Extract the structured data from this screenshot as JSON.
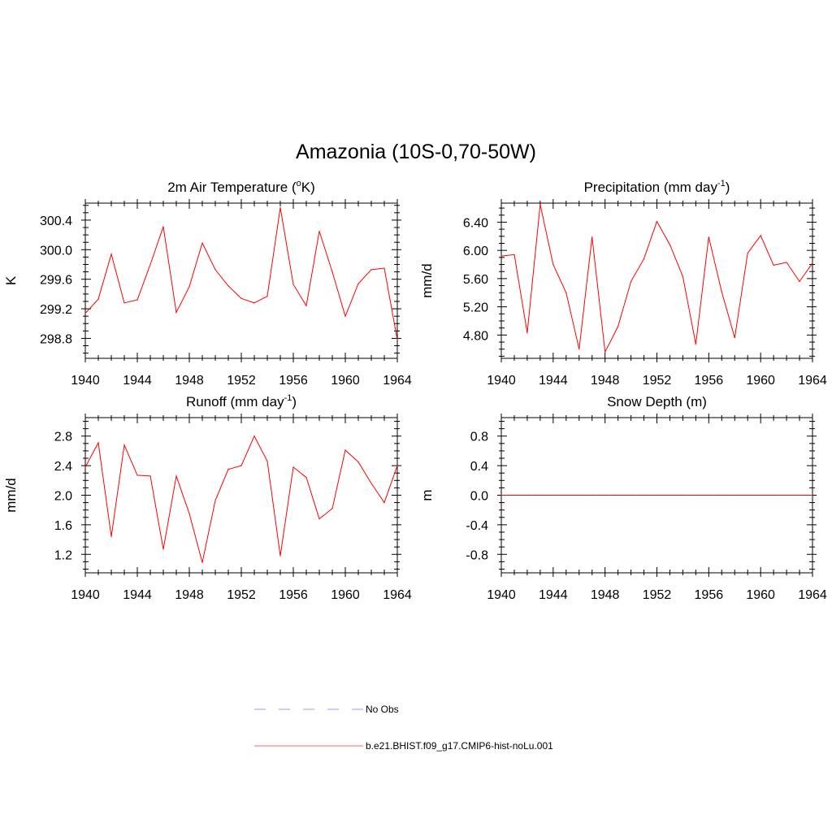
{
  "figure": {
    "title": "Amazonia (10S-0,70-50W)"
  },
  "legend": [
    {
      "label": "No Obs",
      "color": "#9999ff",
      "style": "dashed"
    },
    {
      "label": "b.e21.BHIST.f09_g17.CMIP6-hist-noLu.001",
      "color": "#ff6666",
      "style": "solid"
    }
  ],
  "chart_data": [
    {
      "type": "line",
      "title": "2m Air Temperature (oK)",
      "title_parts": {
        "pre": "2m Air Temperature (",
        "sup": "o",
        "post": "K)"
      },
      "ylabel": "K",
      "xlim": [
        1940,
        1964
      ],
      "ylim": [
        298.53,
        300.63
      ],
      "xticks": [
        1940,
        1944,
        1948,
        1952,
        1956,
        1960,
        1964
      ],
      "xtick_labels": [
        "1940",
        "1944",
        "1948",
        "1952",
        "1956",
        "1960",
        "1964"
      ],
      "yticks": [
        298.8,
        299.2,
        299.6,
        300.0,
        300.4
      ],
      "ytick_labels": [
        "298.8",
        "299.2",
        "299.6",
        "300.0",
        "300.4"
      ],
      "y_minor_step": 0.1,
      "grid": false,
      "series": [
        {
          "color": "#ff0000",
          "x": [
            1940,
            1941,
            1942,
            1943,
            1944,
            1945,
            1946,
            1947,
            1948,
            1949,
            1950,
            1951,
            1952,
            1953,
            1954,
            1955,
            1956,
            1957,
            1958,
            1959,
            1960,
            1961,
            1962,
            1963,
            1964
          ],
          "values": [
            299.14,
            299.33,
            299.94,
            299.28,
            299.32,
            299.8,
            300.31,
            299.15,
            299.5,
            300.09,
            299.73,
            299.51,
            299.34,
            299.28,
            299.37,
            300.57,
            299.53,
            299.24,
            300.25,
            299.7,
            299.1,
            299.54,
            299.73,
            299.75,
            298.78
          ]
        }
      ]
    },
    {
      "type": "line",
      "title": "Precipitation (mm day-1)",
      "title_parts": {
        "pre": "Precipitation (mm day",
        "sup": "-1",
        "post": ")"
      },
      "ylabel": "mm/d",
      "xlim": [
        1940,
        1964
      ],
      "ylim": [
        4.47,
        6.67
      ],
      "xticks": [
        1940,
        1944,
        1948,
        1952,
        1956,
        1960,
        1964
      ],
      "xtick_labels": [
        "1940",
        "1944",
        "1948",
        "1952",
        "1956",
        "1960",
        "1964"
      ],
      "yticks": [
        4.8,
        5.2,
        5.6,
        6.0,
        6.4
      ],
      "ytick_labels": [
        "4.80",
        "5.20",
        "5.60",
        "6.00",
        "6.40"
      ],
      "y_minor_step": 0.1,
      "grid": false,
      "series": [
        {
          "color": "#ff0000",
          "x": [
            1940,
            1941,
            1942,
            1943,
            1944,
            1945,
            1946,
            1947,
            1948,
            1949,
            1950,
            1951,
            1952,
            1953,
            1954,
            1955,
            1956,
            1957,
            1958,
            1959,
            1960,
            1961,
            1962,
            1963,
            1964
          ],
          "values": [
            5.92,
            5.94,
            4.83,
            6.65,
            5.8,
            5.4,
            4.6,
            6.19,
            4.56,
            4.92,
            5.56,
            5.88,
            6.41,
            6.08,
            5.63,
            4.67,
            6.19,
            5.41,
            4.76,
            5.96,
            6.21,
            5.79,
            5.83,
            5.56,
            5.82
          ]
        }
      ]
    },
    {
      "type": "line",
      "title": "Runoff (mm day-1)",
      "title_parts": {
        "pre": "Runoff (mm day",
        "sup": "-1",
        "post": ")"
      },
      "ylabel": "mm/d",
      "xlim": [
        1940,
        1964
      ],
      "ylim": [
        0.95,
        3.05
      ],
      "xticks": [
        1940,
        1944,
        1948,
        1952,
        1956,
        1960,
        1964
      ],
      "xtick_labels": [
        "1940",
        "1944",
        "1948",
        "1952",
        "1956",
        "1960",
        "1964"
      ],
      "yticks": [
        1.2,
        1.6,
        2.0,
        2.4,
        2.8
      ],
      "ytick_labels": [
        "1.2",
        "1.6",
        "2.0",
        "2.4",
        "2.8"
      ],
      "y_minor_step": 0.1,
      "grid": false,
      "series": [
        {
          "color": "#ff0000",
          "x": [
            1940,
            1941,
            1942,
            1943,
            1944,
            1945,
            1946,
            1947,
            1948,
            1949,
            1950,
            1951,
            1952,
            1953,
            1954,
            1955,
            1956,
            1957,
            1958,
            1959,
            1960,
            1961,
            1962,
            1963,
            1964
          ],
          "values": [
            2.38,
            2.71,
            1.44,
            2.68,
            2.27,
            2.26,
            1.27,
            2.26,
            1.75,
            1.09,
            1.93,
            2.35,
            2.4,
            2.8,
            2.46,
            1.18,
            2.38,
            2.24,
            1.68,
            1.82,
            2.61,
            2.45,
            2.16,
            1.9,
            2.4
          ]
        }
      ]
    },
    {
      "type": "line",
      "title": "Snow Depth (m)",
      "title_parts": {
        "pre": "Snow Depth (m)",
        "sup": "",
        "post": ""
      },
      "ylabel": "m",
      "xlim": [
        1940,
        1964
      ],
      "ylim": [
        -1.05,
        1.05
      ],
      "xticks": [
        1940,
        1944,
        1948,
        1952,
        1956,
        1960,
        1964
      ],
      "xtick_labels": [
        "1940",
        "1944",
        "1948",
        "1952",
        "1956",
        "1960",
        "1964"
      ],
      "yticks": [
        -0.8,
        -0.4,
        0.0,
        0.4,
        0.8
      ],
      "ytick_labels": [
        "-0.8",
        "-0.4",
        "0.0",
        "0.4",
        "0.8"
      ],
      "y_minor_step": 0.1,
      "grid": false,
      "series": [
        {
          "color": "#ff0000",
          "x": [
            1940,
            1941,
            1942,
            1943,
            1944,
            1945,
            1946,
            1947,
            1948,
            1949,
            1950,
            1951,
            1952,
            1953,
            1954,
            1955,
            1956,
            1957,
            1958,
            1959,
            1960,
            1961,
            1962,
            1963,
            1964
          ],
          "values": [
            0,
            0,
            0,
            0,
            0,
            0,
            0,
            0,
            0,
            0,
            0,
            0,
            0,
            0,
            0,
            0,
            0,
            0,
            0,
            0,
            0,
            0,
            0,
            0,
            0
          ]
        }
      ]
    }
  ]
}
